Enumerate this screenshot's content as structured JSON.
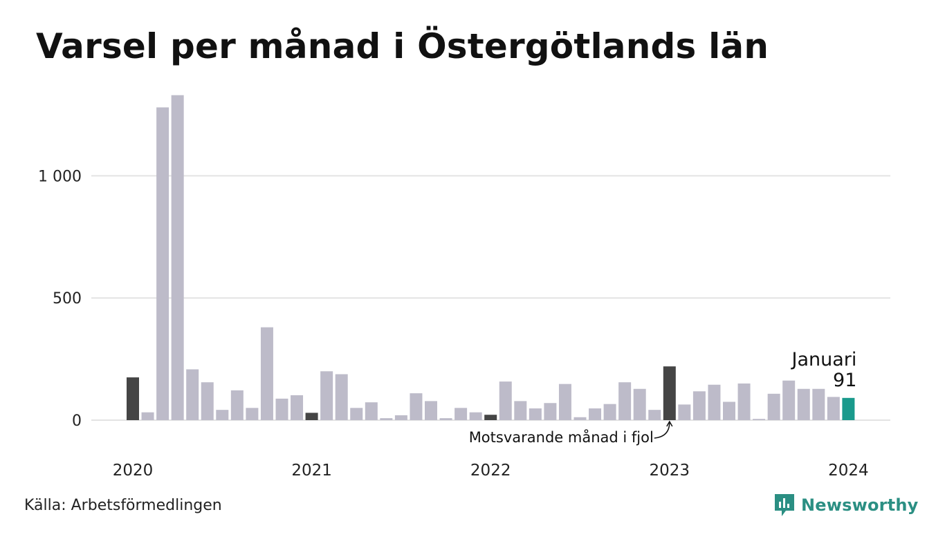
{
  "title": "Varsel per månad i Östergötlands län",
  "source": "Källa: Arbetsförmedlingen",
  "brand": "Newsworthy",
  "colors": {
    "bar": "#bdbbc9",
    "same_month_last_year": "#454545",
    "current": "#1a9a8c",
    "grid": "#e3e3e3",
    "brand": "#2b8f83"
  },
  "icons": {
    "brand": "newsworthy-logo-icon",
    "annotation": "curved-arrow-icon"
  },
  "chart_data": {
    "type": "bar",
    "title": "Varsel per månad i Östergötlands län",
    "ylim": [
      0,
      1350
    ],
    "yticks": [
      0,
      500,
      1000
    ],
    "ytick_labels": [
      "0",
      "500",
      "1 000"
    ],
    "grid": true,
    "xtick_labels": [
      "2020",
      "2021",
      "2022",
      "2023",
      "2024"
    ],
    "xtick_positions": [
      0,
      12,
      24,
      36,
      48
    ],
    "values": [
      175,
      32,
      1280,
      1330,
      208,
      155,
      42,
      122,
      50,
      380,
      88,
      102,
      30,
      200,
      188,
      50,
      73,
      8,
      20,
      110,
      78,
      8,
      50,
      32,
      22,
      158,
      78,
      48,
      70,
      148,
      12,
      48,
      66,
      155,
      128,
      42,
      220,
      64,
      118,
      145,
      75,
      150,
      5,
      108,
      162,
      128,
      128,
      95,
      91
    ],
    "highlight_indices": [
      0,
      12,
      24,
      36
    ],
    "current_index": 48,
    "annotations": {
      "current_month": "Januari",
      "current_value": "91",
      "last_year": "Motsvarande månad i fjol"
    }
  }
}
